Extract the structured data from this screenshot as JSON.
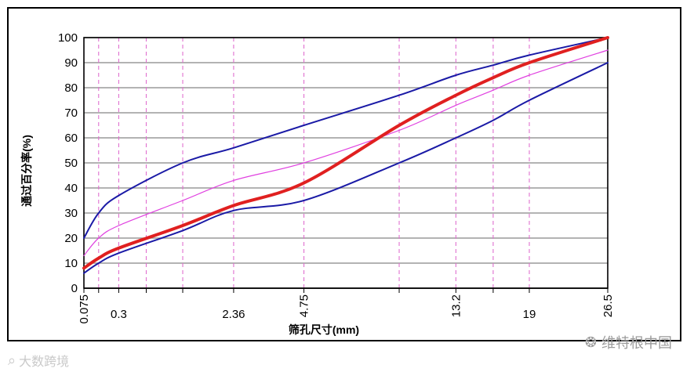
{
  "chart_data": {
    "type": "line",
    "xlabel": "筛孔尺寸(mm)",
    "ylabel": "通过百分率(%)",
    "ylim": [
      0,
      100
    ],
    "yticks": [
      0,
      10,
      20,
      30,
      40,
      50,
      60,
      70,
      80,
      90,
      100
    ],
    "xlim": [
      0.075,
      26.5
    ],
    "x_scale": "power-0.45",
    "sieve_sizes": [
      0.075,
      0.15,
      0.3,
      0.6,
      1.18,
      2.36,
      4.75,
      9.5,
      13.2,
      16,
      19,
      26.5
    ],
    "xtick_labels": [
      {
        "value": 0.075,
        "text": "0.075",
        "rotated": true
      },
      {
        "value": 0.3,
        "text": "0.3",
        "rotated": false
      },
      {
        "value": 2.36,
        "text": "2.36",
        "rotated": false
      },
      {
        "value": 4.75,
        "text": "4.75",
        "rotated": true
      },
      {
        "value": 13.2,
        "text": "13.2",
        "rotated": true
      },
      {
        "value": 19,
        "text": "19",
        "rotated": false
      },
      {
        "value": 26.5,
        "text": "26.5",
        "rotated": true
      }
    ],
    "grid": true,
    "series": [
      {
        "color": "#1a1aa6",
        "width": 2,
        "points": [
          [
            0.075,
            20
          ],
          [
            0.15,
            30
          ],
          [
            0.3,
            37
          ],
          [
            1.18,
            50
          ],
          [
            2.36,
            56
          ],
          [
            4.75,
            65
          ],
          [
            9.5,
            77
          ],
          [
            13.2,
            85
          ],
          [
            16,
            89
          ],
          [
            19,
            93
          ],
          [
            26.5,
            100
          ]
        ]
      },
      {
        "color": "#1a1aa6",
        "width": 2,
        "points": [
          [
            0.075,
            6
          ],
          [
            0.15,
            10
          ],
          [
            0.3,
            14
          ],
          [
            1.18,
            23
          ],
          [
            2.36,
            31
          ],
          [
            4.75,
            35
          ],
          [
            9.5,
            50
          ],
          [
            13.2,
            60
          ],
          [
            16,
            67
          ],
          [
            19,
            75
          ],
          [
            26.5,
            90
          ]
        ]
      },
      {
        "color": "#e040e0",
        "width": 1.2,
        "points": [
          [
            0.075,
            13
          ],
          [
            0.15,
            20
          ],
          [
            0.3,
            25
          ],
          [
            1.18,
            35
          ],
          [
            2.36,
            43
          ],
          [
            4.75,
            50
          ],
          [
            9.5,
            63
          ],
          [
            13.2,
            73
          ],
          [
            16,
            79
          ],
          [
            19,
            85
          ],
          [
            26.5,
            95
          ]
        ]
      },
      {
        "color": "#e02020",
        "width": 4,
        "points": [
          [
            0.075,
            8
          ],
          [
            0.15,
            12
          ],
          [
            0.3,
            16
          ],
          [
            1.18,
            25
          ],
          [
            2.36,
            33
          ],
          [
            4.75,
            42
          ],
          [
            9.5,
            65
          ],
          [
            13.2,
            77
          ],
          [
            16,
            84
          ],
          [
            19,
            90
          ],
          [
            26.5,
            100
          ]
        ]
      }
    ]
  },
  "watermarks": {
    "left_text": "大数跨境",
    "right_text": "维特根中国",
    "left_icon": "speech-bubble-icon",
    "right_icon": "wechat-icon"
  }
}
